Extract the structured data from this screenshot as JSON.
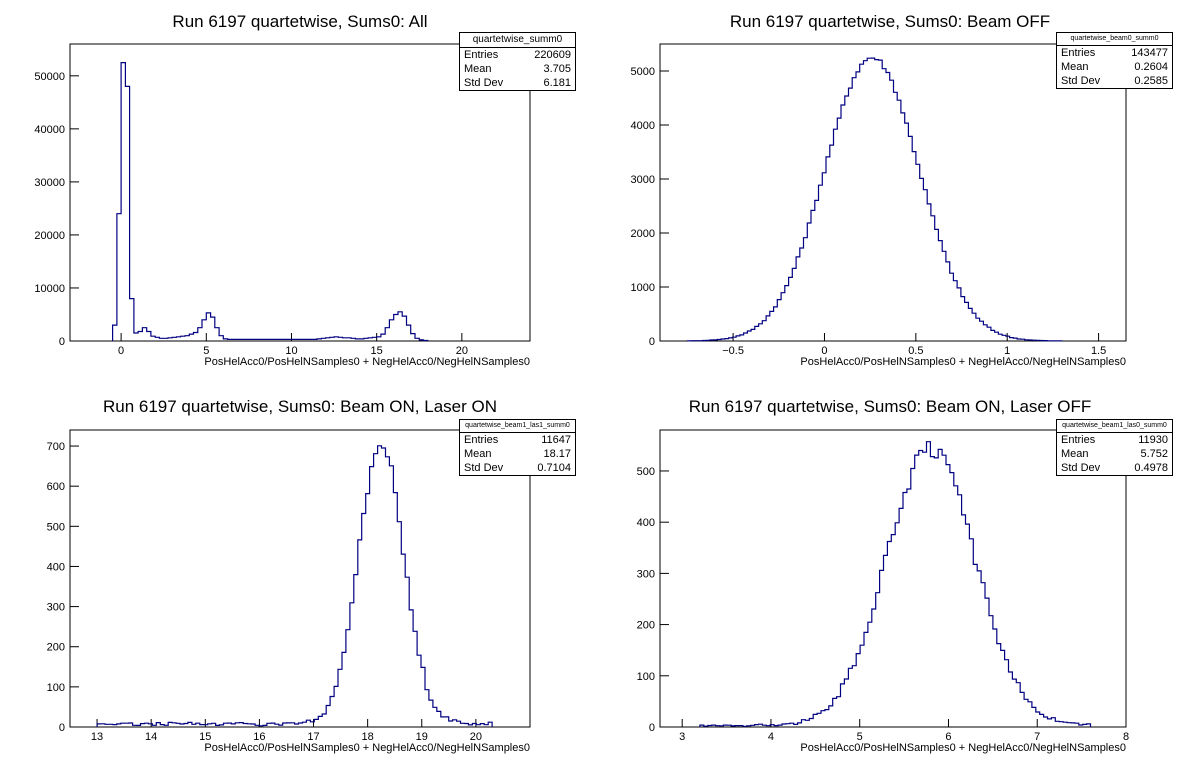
{
  "chart_data": [
    {
      "type": "histogram",
      "title": "Run 6197 quartetwise, Sums0: All",
      "xlabel": "PosHelAcc0/PosHelNSamples0 + NegHelAcc0/NegHelNSamples0",
      "xlim": [
        -3,
        24
      ],
      "ylim": [
        0,
        56000
      ],
      "xticks": [
        0,
        5,
        10,
        15,
        20
      ],
      "yticks": [
        0,
        10000,
        20000,
        30000,
        40000,
        50000
      ],
      "stats": {
        "name": "quartetwise_summ0",
        "Entries": "220609",
        "Mean": "3.705",
        "Std Dev": "6.181"
      },
      "bin_width": 0.25,
      "x_start": -0.5,
      "values": [
        3000,
        24000,
        52500,
        48000,
        8000,
        1500,
        1800,
        2500,
        1800,
        900,
        700,
        500,
        500,
        600,
        700,
        800,
        900,
        1000,
        1300,
        1600,
        2500,
        4000,
        5300,
        4500,
        2500,
        1000,
        400,
        300,
        300,
        300,
        300,
        300,
        300,
        300,
        300,
        300,
        300,
        300,
        300,
        300,
        300,
        300,
        300,
        300,
        300,
        300,
        300,
        300,
        400,
        500,
        600,
        700,
        800,
        700,
        600,
        600,
        500,
        400,
        400,
        500,
        600,
        700,
        800,
        1300,
        2500,
        4000,
        5000,
        5500,
        4700,
        3000,
        1400,
        500,
        200,
        100
      ]
    },
    {
      "type": "histogram",
      "title": "Run 6197 quartetwise, Sums0: Beam OFF",
      "xlabel": "PosHelAcc0/PosHelNSamples0 + NegHelAcc0/NegHelNSamples0",
      "xlim": [
        -0.9,
        1.65
      ],
      "ylim": [
        0,
        5500
      ],
      "xticks": [
        -0.5,
        0,
        0.5,
        1,
        1.5
      ],
      "yticks": [
        0,
        1000,
        2000,
        3000,
        4000,
        5000
      ],
      "stats": {
        "name": "quartetwise_beam0_summ0",
        "Entries": "143477",
        "Mean": "0.2604",
        "Std Dev": "0.2585"
      },
      "gauss": {
        "mean": 0.2604,
        "sigma": 0.2585,
        "peak": 5250,
        "x0": -0.75,
        "x1": 1.3,
        "bins": 100
      }
    },
    {
      "type": "histogram",
      "title": "Run 6197 quartetwise, Sums0: Beam ON, Laser ON",
      "xlabel": "PosHelAcc0/PosHelNSamples0 + NegHelAcc0/NegHelNSamples0",
      "xlim": [
        12.5,
        21
      ],
      "ylim": [
        0,
        740
      ],
      "xticks": [
        13,
        14,
        15,
        16,
        17,
        18,
        19,
        20
      ],
      "yticks": [
        0,
        100,
        200,
        300,
        400,
        500,
        600,
        700
      ],
      "stats": {
        "name": "quartetwise_beam1_las1_summ0",
        "Entries": "11647",
        "Mean": "18.17",
        "Std Dev": "0.7104"
      },
      "gauss": {
        "mean": 18.25,
        "sigma": 0.42,
        "peak": 700,
        "x0": 13.0,
        "x1": 20.3,
        "bins": 100,
        "tail": 8
      }
    },
    {
      "type": "histogram",
      "title": "Run 6197 quartetwise, Sums0: Beam ON, Laser OFF",
      "xlabel": "PosHelAcc0/PosHelNSamples0 + NegHelAcc0/NegHelNSamples0",
      "xlim": [
        2.75,
        8.0
      ],
      "ylim": [
        0,
        580
      ],
      "xticks": [
        3,
        4,
        5,
        6,
        7,
        8
      ],
      "yticks": [
        0,
        100,
        200,
        300,
        400,
        500
      ],
      "stats": {
        "name": "quartetwise_beam1_las0_summ0",
        "Entries": "11930",
        "Mean": "5.752",
        "Std Dev": "0.4978"
      },
      "gauss": {
        "mean": 5.8,
        "sigma": 0.5,
        "peak": 540,
        "x0": 3.2,
        "x1": 7.6,
        "bins": 100,
        "tail": 3
      }
    }
  ]
}
